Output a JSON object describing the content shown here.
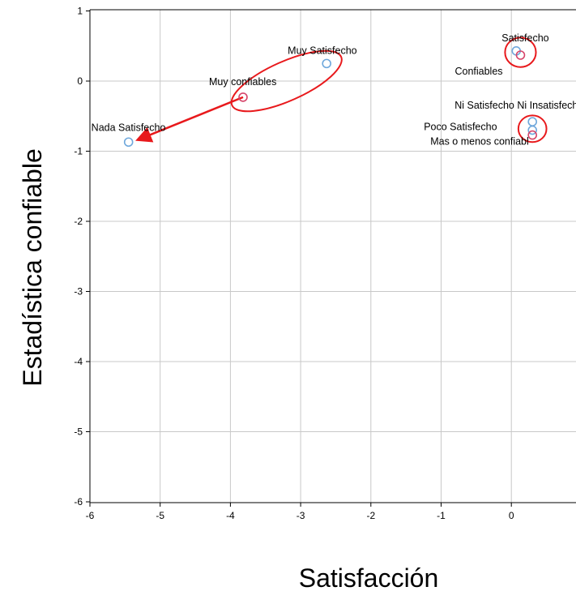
{
  "chart_data": {
    "type": "scatter",
    "xlabel": "Satisfacción",
    "ylabel": "Estadística confiable",
    "xlim": [
      -6,
      1
    ],
    "ylim": [
      -6,
      1
    ],
    "x_ticks": [
      "-6",
      "-5",
      "-4",
      "-3",
      "-2",
      "-1",
      "0"
    ],
    "y_ticks": [
      "1",
      "0",
      "-1",
      "-2",
      "-3",
      "-4",
      "-5",
      "-6"
    ],
    "grid": true,
    "series": [
      {
        "color": "#6fa8dc",
        "points": [
          {
            "label": "Muy Satisfecho",
            "x": -2.63,
            "y": 0.25
          },
          {
            "label": "Satisfecho",
            "x": 0.07,
            "y": 0.43
          },
          {
            "label": "Ni Satisfecho Ni Insatisfecho",
            "x": 0.3,
            "y": -0.58
          },
          {
            "label": "Poco Satisfecho",
            "x": 0.3,
            "y": -0.7
          },
          {
            "label": "Nada Satisfecho",
            "x": -5.45,
            "y": -0.87
          }
        ]
      },
      {
        "color": "#d6456a",
        "points": [
          {
            "label": "Muy confiables",
            "x": -3.82,
            "y": -0.23
          },
          {
            "label": "Confiables",
            "x": 0.13,
            "y": 0.37
          },
          {
            "label": "Mas o menos confiabl",
            "x": 0.3,
            "y": -0.77
          }
        ]
      }
    ],
    "annotations": {
      "color": "#e8191c",
      "ellipses": [
        {
          "cx": -3.2,
          "cy": 0.0,
          "rx": 0.85,
          "ry": 0.28,
          "angle": -24
        },
        {
          "cx": 0.13,
          "cy": 0.41,
          "rx": 0.22,
          "ry": 0.21,
          "angle": 0
        },
        {
          "cx": 0.3,
          "cy": -0.68,
          "rx": 0.2,
          "ry": 0.19,
          "angle": 0
        }
      ],
      "arrow": {
        "from": [
          -3.82,
          -0.23
        ],
        "to": [
          -5.3,
          -0.83
        ]
      }
    }
  }
}
